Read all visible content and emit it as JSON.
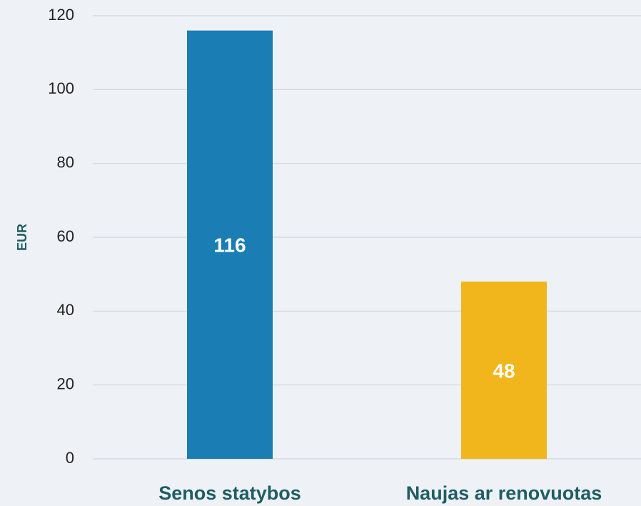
{
  "chart_data": {
    "type": "bar",
    "y_label": "EUR",
    "categories": [
      "Senos statybos",
      "Naujas ar renovuotas"
    ],
    "values": [
      116,
      48
    ],
    "colors": [
      "#1a7db3",
      "#f1b61b"
    ],
    "ylim": [
      0,
      120
    ],
    "yticks": [
      0,
      20,
      40,
      60,
      80,
      100,
      120
    ],
    "grid": true
  }
}
